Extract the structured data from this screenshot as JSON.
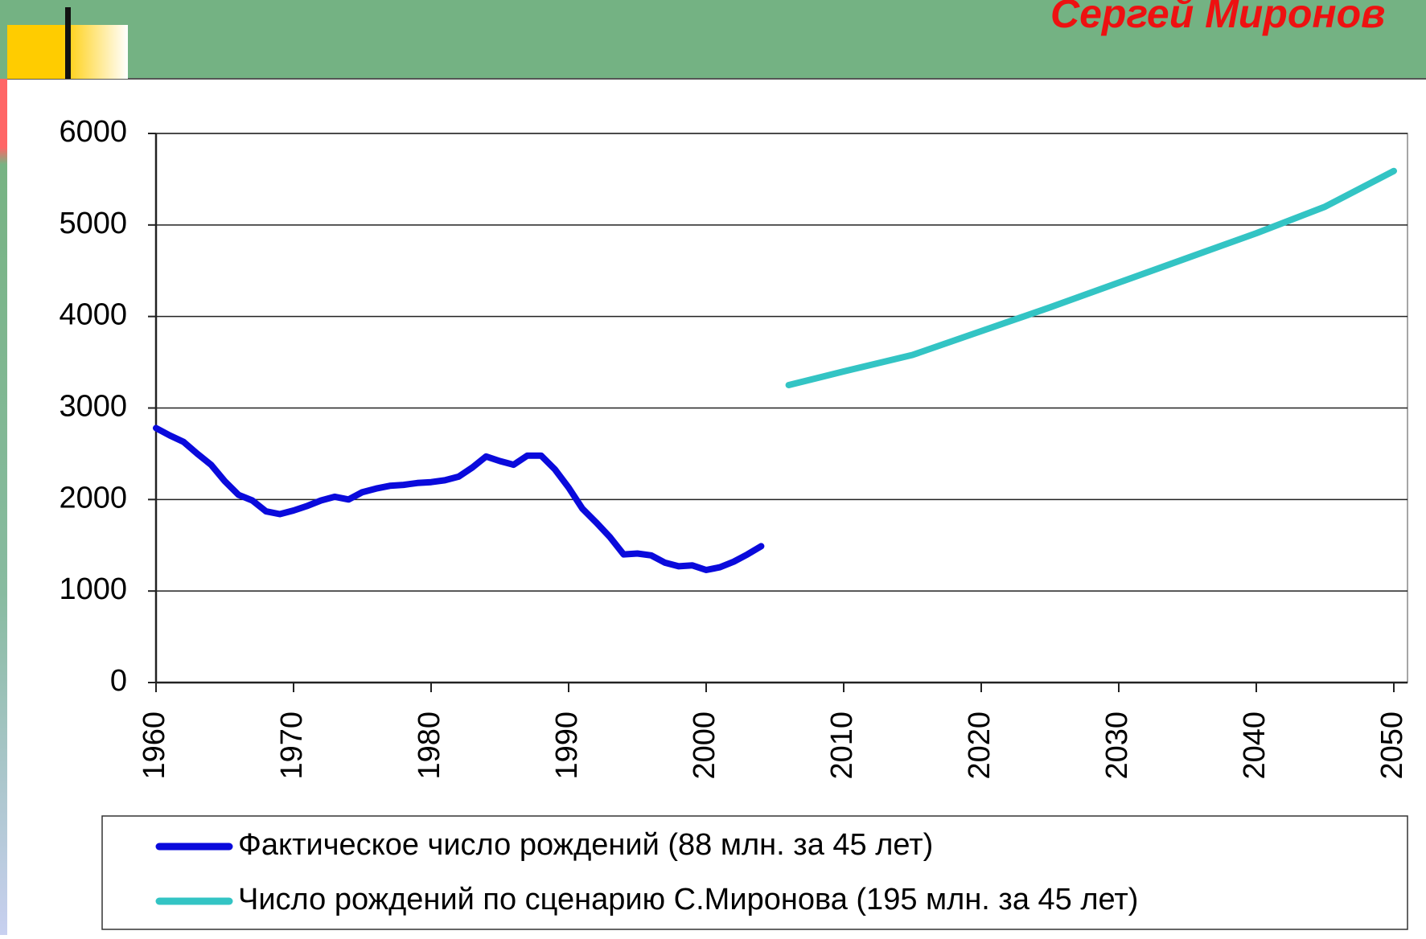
{
  "header": {
    "author": "Сергей Миронов"
  },
  "chart_data": {
    "type": "line",
    "series": [
      {
        "name": "Фактическое число рождений (88 млн. за 45 лет)",
        "color": "#0a0adc",
        "x": [
          1960,
          1961,
          1962,
          1963,
          1964,
          1965,
          1966,
          1967,
          1968,
          1969,
          1970,
          1971,
          1972,
          1973,
          1974,
          1975,
          1976,
          1977,
          1978,
          1979,
          1980,
          1981,
          1982,
          1983,
          1984,
          1985,
          1986,
          1987,
          1988,
          1989,
          1990,
          1991,
          1992,
          1993,
          1994,
          1995,
          1996,
          1997,
          1998,
          1999,
          2000,
          2001,
          2002,
          2003,
          2004
        ],
        "values": [
          2780,
          2700,
          2630,
          2500,
          2380,
          2200,
          2050,
          1990,
          1870,
          1840,
          1880,
          1930,
          1990,
          2030,
          2000,
          2080,
          2120,
          2150,
          2160,
          2180,
          2190,
          2210,
          2250,
          2350,
          2470,
          2420,
          2380,
          2480,
          2480,
          2330,
          2130,
          1900,
          1750,
          1590,
          1400,
          1410,
          1390,
          1310,
          1270,
          1280,
          1230,
          1260,
          1320,
          1400,
          1490
        ]
      },
      {
        "name": "Число рождений по сценарию С.Миронова (195 млн. за 45 лет)",
        "color": "#33c4c4",
        "x": [
          2006,
          2010,
          2015,
          2020,
          2025,
          2030,
          2035,
          2040,
          2045,
          2050
        ],
        "values": [
          3250,
          3400,
          3580,
          3840,
          4100,
          4370,
          4640,
          4910,
          5200,
          5590
        ]
      }
    ],
    "xlim": [
      1960,
      2050
    ],
    "xticks": [
      1960,
      1970,
      1980,
      1990,
      2000,
      2010,
      2020,
      2030,
      2040,
      2050
    ],
    "ylim": [
      0,
      6000
    ],
    "yticks": [
      0,
      1000,
      2000,
      3000,
      4000,
      5000,
      6000
    ],
    "grid": true
  }
}
